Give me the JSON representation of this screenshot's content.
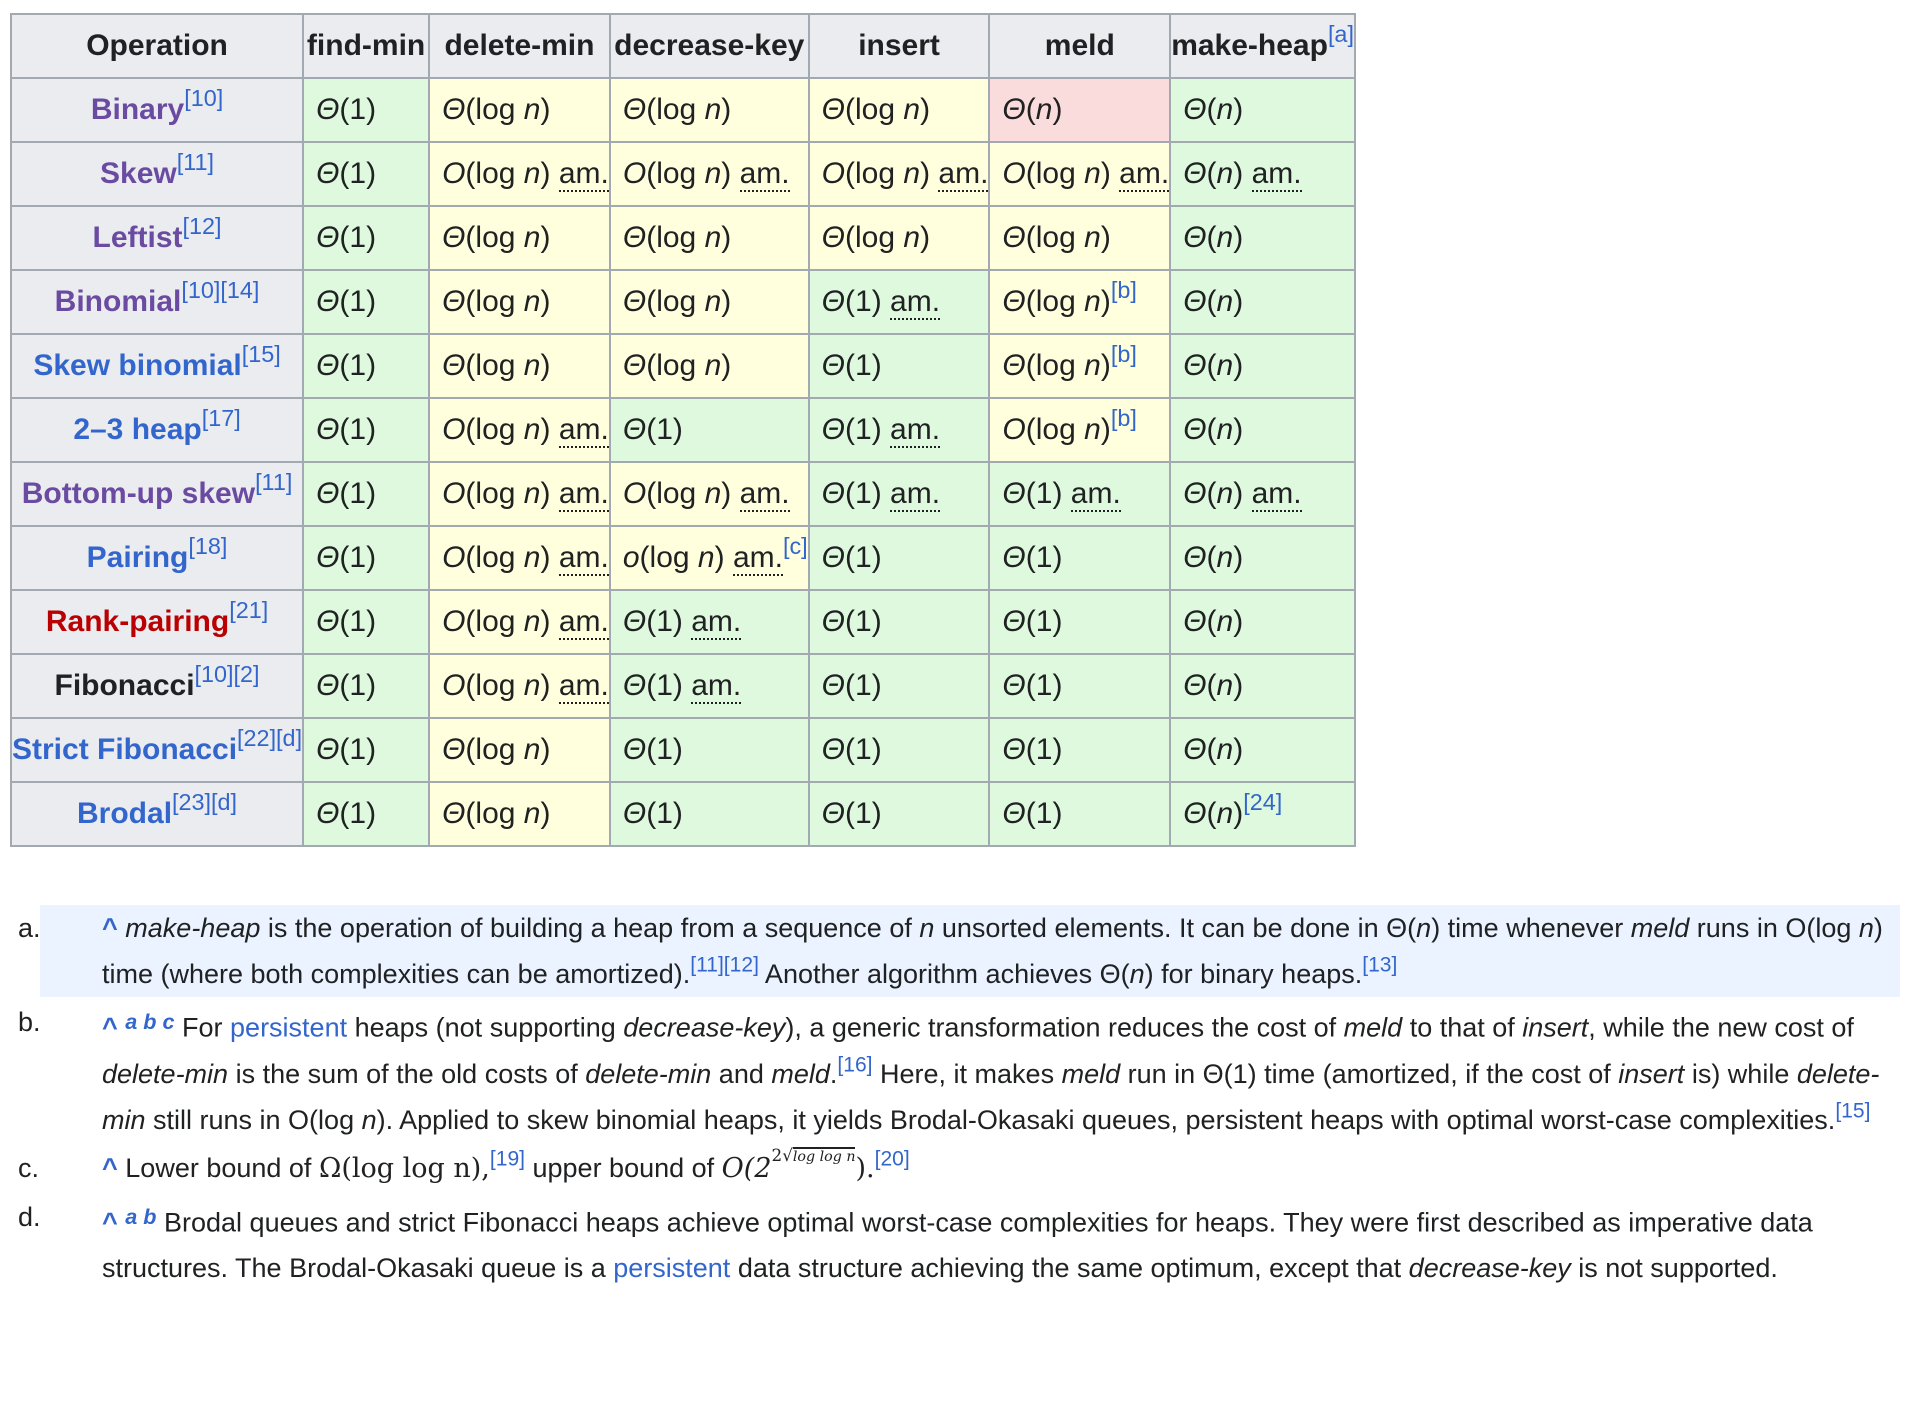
{
  "table": {
    "headers": [
      {
        "label": "Operation",
        "ref": ""
      },
      {
        "label": "find-min",
        "ref": ""
      },
      {
        "label": "delete-min",
        "ref": ""
      },
      {
        "label": "decrease-key",
        "ref": ""
      },
      {
        "label": "insert",
        "ref": ""
      },
      {
        "label": "meld",
        "ref": ""
      },
      {
        "label": "make-heap",
        "ref": "[a]"
      }
    ],
    "rows": [
      {
        "name": "Binary",
        "refs": "[10]",
        "link": "visited",
        "cells": [
          {
            "o": "Θ",
            "a": "1",
            "cls": "g"
          },
          {
            "o": "Θ",
            "a": "log n",
            "cls": "y"
          },
          {
            "o": "Θ",
            "a": "log n",
            "cls": "y"
          },
          {
            "o": "Θ",
            "a": "log n",
            "cls": "y"
          },
          {
            "o": "Θ",
            "a": "n",
            "cls": "r"
          },
          {
            "o": "Θ",
            "a": "n",
            "cls": "g"
          }
        ]
      },
      {
        "name": "Skew",
        "refs": "[11]",
        "link": "visited",
        "cells": [
          {
            "o": "Θ",
            "a": "1",
            "cls": "g"
          },
          {
            "o": "O",
            "a": "log n",
            "am": "am.",
            "cls": "y"
          },
          {
            "o": "O",
            "a": "log n",
            "am": "am.",
            "cls": "y"
          },
          {
            "o": "O",
            "a": "log n",
            "am": "am.",
            "cls": "y"
          },
          {
            "o": "O",
            "a": "log n",
            "am": "am.",
            "cls": "y"
          },
          {
            "o": "Θ",
            "a": "n",
            "am": "am.",
            "cls": "g"
          }
        ]
      },
      {
        "name": "Leftist",
        "refs": "[12]",
        "link": "visited",
        "cells": [
          {
            "o": "Θ",
            "a": "1",
            "cls": "g"
          },
          {
            "o": "Θ",
            "a": "log n",
            "cls": "y"
          },
          {
            "o": "Θ",
            "a": "log n",
            "cls": "y"
          },
          {
            "o": "Θ",
            "a": "log n",
            "cls": "y"
          },
          {
            "o": "Θ",
            "a": "log n",
            "cls": "y"
          },
          {
            "o": "Θ",
            "a": "n",
            "cls": "g"
          }
        ]
      },
      {
        "name": "Binomial",
        "refs": "[10][14]",
        "link": "visited",
        "cells": [
          {
            "o": "Θ",
            "a": "1",
            "cls": "g"
          },
          {
            "o": "Θ",
            "a": "log n",
            "cls": "y"
          },
          {
            "o": "Θ",
            "a": "log n",
            "cls": "y"
          },
          {
            "o": "Θ",
            "a": "1",
            "am": "am.",
            "cls": "g"
          },
          {
            "o": "Θ",
            "a": "log n",
            "ref": "[b]",
            "cls": "y"
          },
          {
            "o": "Θ",
            "a": "n",
            "cls": "g"
          }
        ]
      },
      {
        "name": "Skew binomial",
        "refs": "[15]",
        "link": "blue",
        "cells": [
          {
            "o": "Θ",
            "a": "1",
            "cls": "g"
          },
          {
            "o": "Θ",
            "a": "log n",
            "cls": "y"
          },
          {
            "o": "Θ",
            "a": "log n",
            "cls": "y"
          },
          {
            "o": "Θ",
            "a": "1",
            "cls": "g"
          },
          {
            "o": "Θ",
            "a": "log n",
            "ref": "[b]",
            "cls": "y"
          },
          {
            "o": "Θ",
            "a": "n",
            "cls": "g"
          }
        ]
      },
      {
        "name": "2–3 heap",
        "refs": "[17]",
        "link": "blue",
        "cells": [
          {
            "o": "Θ",
            "a": "1",
            "cls": "g"
          },
          {
            "o": "O",
            "a": "log n",
            "am": "am.",
            "cls": "y"
          },
          {
            "o": "Θ",
            "a": "1",
            "cls": "g"
          },
          {
            "o": "Θ",
            "a": "1",
            "am": "am.",
            "cls": "g"
          },
          {
            "o": "O",
            "a": "log n",
            "ref": "[b]",
            "cls": "y"
          },
          {
            "o": "Θ",
            "a": "n",
            "cls": "g"
          }
        ]
      },
      {
        "name": "Bottom-up skew",
        "refs": "[11]",
        "link": "visited",
        "cells": [
          {
            "o": "Θ",
            "a": "1",
            "cls": "g"
          },
          {
            "o": "O",
            "a": "log n",
            "am": "am.",
            "cls": "y"
          },
          {
            "o": "O",
            "a": "log n",
            "am": "am.",
            "cls": "y"
          },
          {
            "o": "Θ",
            "a": "1",
            "am": "am.",
            "cls": "g"
          },
          {
            "o": "Θ",
            "a": "1",
            "am": "am.",
            "cls": "g"
          },
          {
            "o": "Θ",
            "a": "n",
            "am": "am.",
            "cls": "g"
          }
        ]
      },
      {
        "name": "Pairing",
        "refs": "[18]",
        "link": "blue",
        "cells": [
          {
            "o": "Θ",
            "a": "1",
            "cls": "g"
          },
          {
            "o": "O",
            "a": "log n",
            "am": "am.",
            "cls": "y"
          },
          {
            "o": "o",
            "a": "log n",
            "am": "am.",
            "ref": "[c]",
            "cls": "y"
          },
          {
            "o": "Θ",
            "a": "1",
            "cls": "g"
          },
          {
            "o": "Θ",
            "a": "1",
            "cls": "g"
          },
          {
            "o": "Θ",
            "a": "n",
            "cls": "g"
          }
        ]
      },
      {
        "name": "Rank-pairing",
        "refs": "[21]",
        "link": "red",
        "cells": [
          {
            "o": "Θ",
            "a": "1",
            "cls": "g"
          },
          {
            "o": "O",
            "a": "log n",
            "am": "am.",
            "cls": "y"
          },
          {
            "o": "Θ",
            "a": "1",
            "am": "am.",
            "cls": "g"
          },
          {
            "o": "Θ",
            "a": "1",
            "cls": "g"
          },
          {
            "o": "Θ",
            "a": "1",
            "cls": "g"
          },
          {
            "o": "Θ",
            "a": "n",
            "cls": "g"
          }
        ]
      },
      {
        "name": "Fibonacci",
        "refs": "[10][2]",
        "link": "black",
        "cells": [
          {
            "o": "Θ",
            "a": "1",
            "cls": "g"
          },
          {
            "o": "O",
            "a": "log n",
            "am": "am.",
            "cls": "y"
          },
          {
            "o": "Θ",
            "a": "1",
            "am": "am.",
            "cls": "g"
          },
          {
            "o": "Θ",
            "a": "1",
            "cls": "g"
          },
          {
            "o": "Θ",
            "a": "1",
            "cls": "g"
          },
          {
            "o": "Θ",
            "a": "n",
            "cls": "g"
          }
        ]
      },
      {
        "name": "Strict Fibonacci",
        "refs": "[22][d]",
        "link": "blue",
        "cells": [
          {
            "o": "Θ",
            "a": "1",
            "cls": "g"
          },
          {
            "o": "Θ",
            "a": "log n",
            "cls": "y"
          },
          {
            "o": "Θ",
            "a": "1",
            "cls": "g"
          },
          {
            "o": "Θ",
            "a": "1",
            "cls": "g"
          },
          {
            "o": "Θ",
            "a": "1",
            "cls": "g"
          },
          {
            "o": "Θ",
            "a": "n",
            "cls": "g"
          }
        ]
      },
      {
        "name": "Brodal",
        "refs": "[23][d]",
        "link": "blue",
        "cells": [
          {
            "o": "Θ",
            "a": "1",
            "cls": "g"
          },
          {
            "o": "Θ",
            "a": "log n",
            "cls": "y"
          },
          {
            "o": "Θ",
            "a": "1",
            "cls": "g"
          },
          {
            "o": "Θ",
            "a": "1",
            "cls": "g"
          },
          {
            "o": "Θ",
            "a": "1",
            "cls": "g"
          },
          {
            "o": "Θ",
            "a": "n",
            "ref": "[24]",
            "cls": "g"
          }
        ]
      }
    ]
  },
  "colors": {
    "green": "#dff9df",
    "yellow": "#ffffdd",
    "red": "#fbdcdc",
    "header": "#eaecf0",
    "link": "#3366cc",
    "visited": "#6b4ba1",
    "redlink": "#ba0000"
  },
  "notes": {
    "a": {
      "marker": "a.",
      "caret": "^",
      "t1": "make-heap",
      "t2": " is the operation of building a heap from a sequence of ",
      "t3": "n",
      "t4": " unsorted elements. It can be done in Θ(",
      "t5": "n",
      "t6": ") time whenever ",
      "t7": "meld",
      "t8": " runs in O(log ",
      "t9": "n",
      "t10": ") time (where both complexities can be amortized).",
      "r1": "[11][12]",
      "t11": " Another algorithm achieves Θ(",
      "t12": "n",
      "t13": ") for binary heaps.",
      "r2": "[13]"
    },
    "b": {
      "marker": "b.",
      "caret": "^",
      "backlinks": "a b c",
      "t1": " For ",
      "link": "persistent",
      "t2": " heaps (not supporting ",
      "t3": "decrease-key",
      "t4": "), a generic transformation reduces the cost of ",
      "t5": "meld",
      "t6": " to that of ",
      "t7": "insert",
      "t8": ", while the new cost of ",
      "t9": "delete-min",
      "t10": " is the sum of the old costs of ",
      "t11": "delete-min",
      "t12": " and ",
      "t13": "meld",
      "t14": ".",
      "r1": "[16]",
      "t15": " Here, it makes ",
      "t16": "meld",
      "t17": " run in Θ(1) time (amortized, if the cost of ",
      "t18": "insert",
      "t19": " is) while ",
      "t20": "delete-min",
      "t21": " still runs in O(log ",
      "t22": "n",
      "t23": "). Applied to skew binomial heaps, it yields Brodal-Okasaki queues, persistent heaps with optimal worst-case complexities.",
      "r2": "[15]"
    },
    "c": {
      "marker": "c.",
      "caret": "^",
      "t1": " Lower bound of ",
      "m1": "Ω(log log n),",
      "r1": "[19]",
      "t2": " upper bound of ",
      "m2a": "O(2",
      "m2b": "2",
      "m2c": "√",
      "m2d": "log log n",
      "m2e": ").",
      "r2": "[20]"
    },
    "d": {
      "marker": "d.",
      "caret": "^",
      "backlinks": "a b",
      "t1": " Brodal queues and strict Fibonacci heaps achieve optimal worst-case complexities for heaps. They were first described as imperative data structures. The Brodal-Okasaki queue is a ",
      "link": "persistent",
      "t2": " data structure achieving the same optimum, except that ",
      "t3": "decrease-key",
      "t4": " is not supported."
    }
  }
}
